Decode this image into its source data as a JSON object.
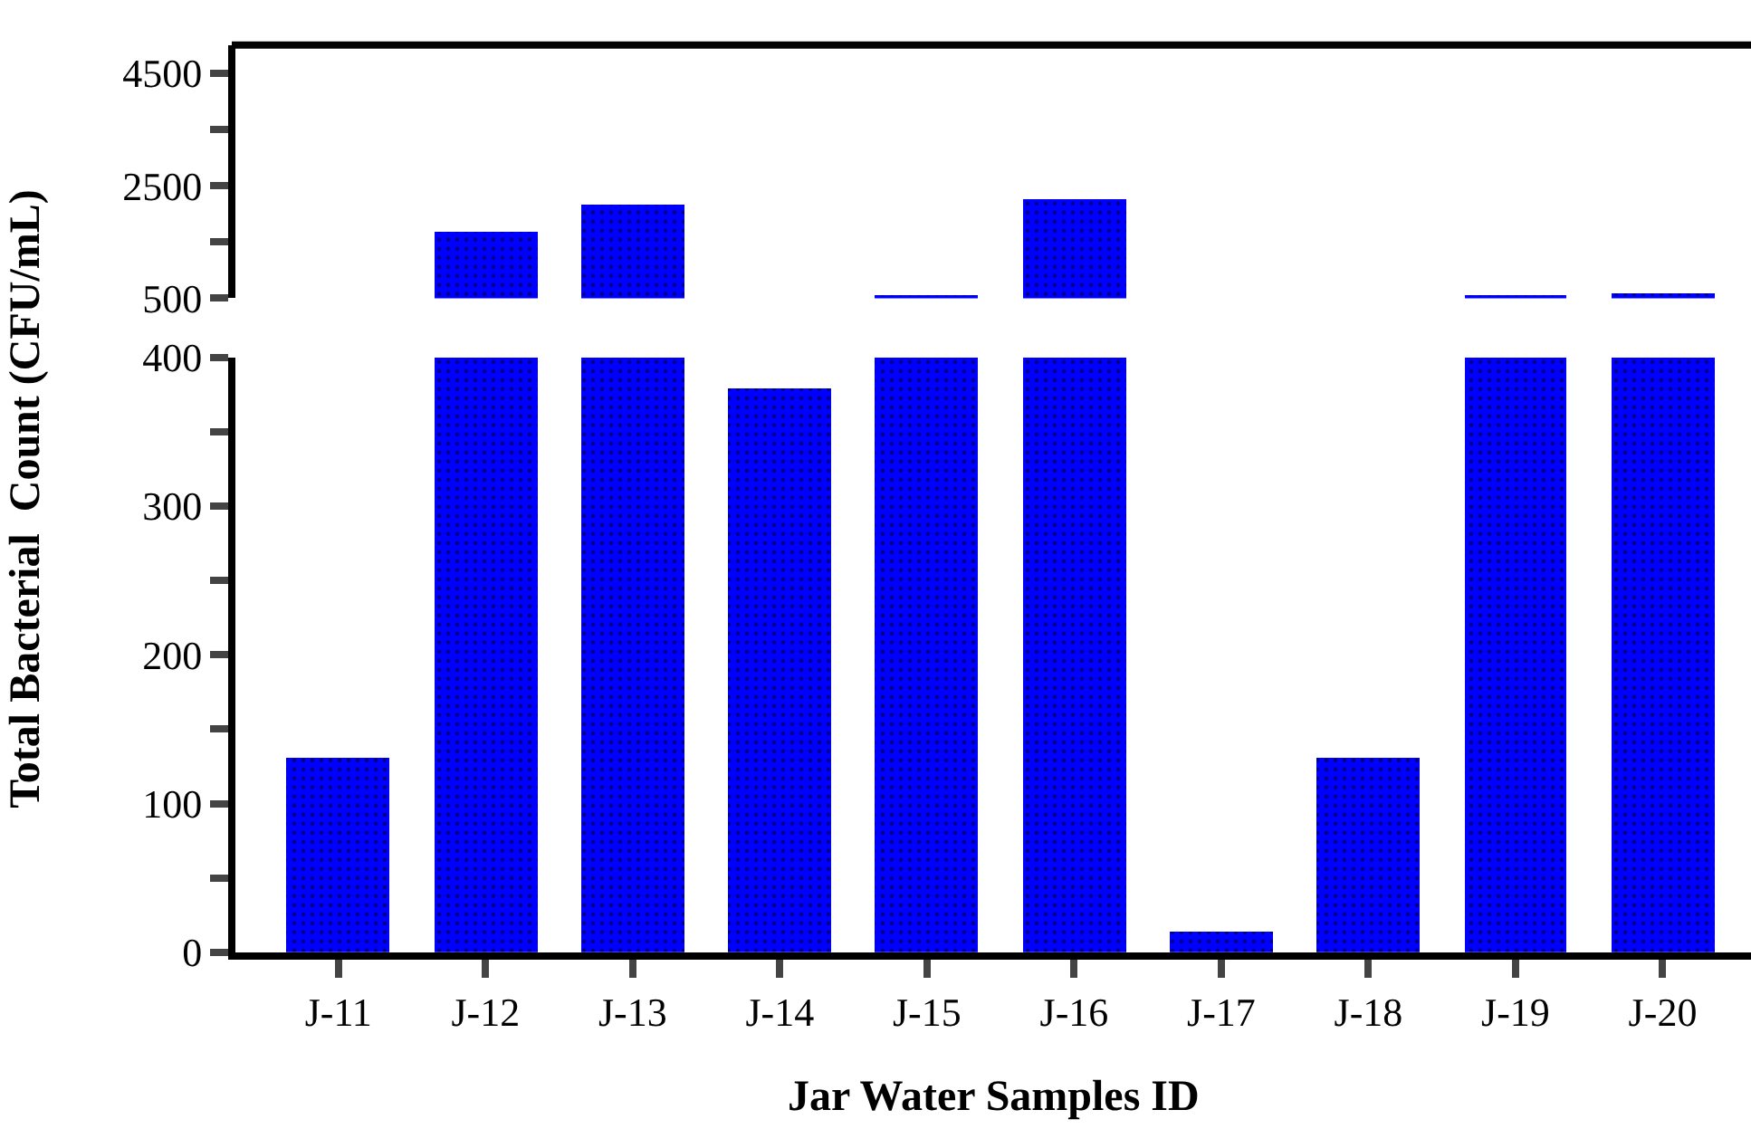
{
  "chart_data": [
    {
      "type": "bar",
      "categories": [
        null,
        null,
        null,
        null,
        null,
        null,
        null,
        null,
        null,
        null
      ],
      "values": [
        null,
        1690,
        2170,
        null,
        560,
        2260,
        null,
        null,
        560,
        600
      ],
      "color": "#0000ff",
      "ylim": [
        500,
        5000
      ],
      "yticks": [
        500,
        {
          "value": 1500,
          "label": null
        },
        2500,
        {
          "value": 3500,
          "label": null
        },
        4500
      ],
      "tick_labels": "y"
    },
    {
      "type": "bar",
      "categories": [
        "J-11",
        "J-12",
        "J-13",
        "J-14",
        "J-15",
        "J-16",
        "J-17",
        "J-18",
        "J-19",
        "J-20"
      ],
      "values": [
        131,
        400,
        400,
        379,
        400,
        400,
        14,
        131,
        400,
        400
      ],
      "color": "#0000ff",
      "ylim": [
        0,
        400
      ],
      "yticks": [
        0,
        {
          "value": 50,
          "label": null
        },
        100,
        {
          "value": 150,
          "label": null
        },
        200,
        {
          "value": 250,
          "label": null
        },
        300,
        {
          "value": 350,
          "label": null
        },
        400
      ],
      "xlabel": "Jar Water Samples ID",
      "ylabel": "Total Bacterial  Count (CFU/mL)"
    }
  ]
}
